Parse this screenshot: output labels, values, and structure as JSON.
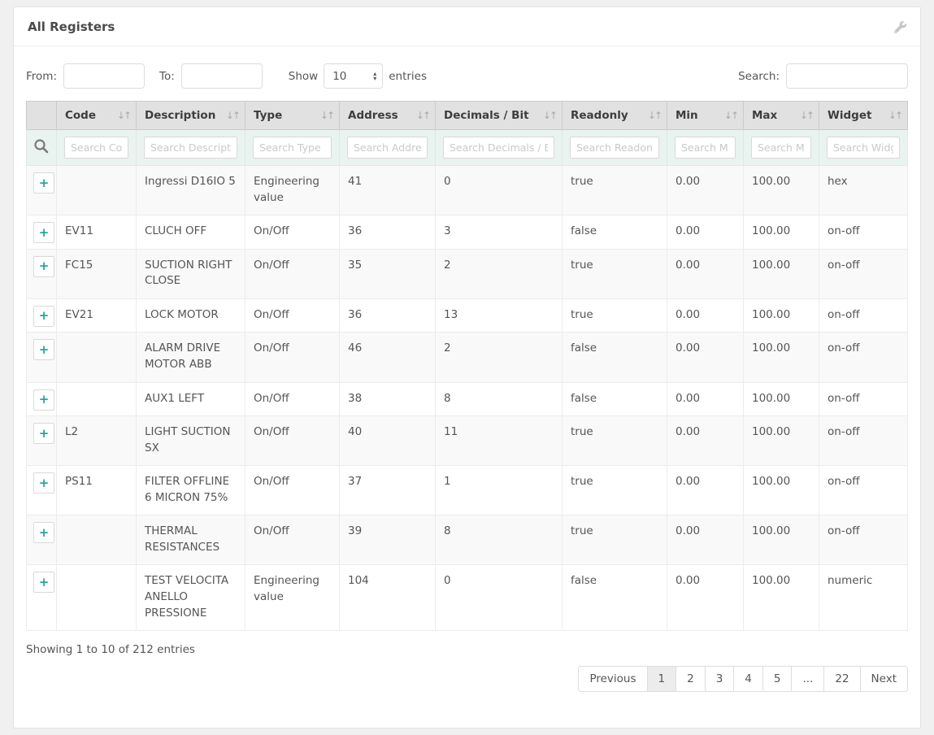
{
  "panel": {
    "title": "All Registers"
  },
  "controls": {
    "from_label": "From:",
    "to_label": "To:",
    "show_label": "Show",
    "page_length": "10",
    "entries_label": "entries",
    "search_label": "Search:"
  },
  "icons": {
    "sort_both": "↓↑",
    "stepper_up": "▴",
    "stepper_down": "▾"
  },
  "table": {
    "expand_button_label": "+",
    "columns": [
      {
        "label": "Code",
        "placeholder": "Search Code"
      },
      {
        "label": "Description",
        "placeholder": "Search Description"
      },
      {
        "label": "Type",
        "placeholder": "Search Type"
      },
      {
        "label": "Address",
        "placeholder": "Search Address"
      },
      {
        "label": "Decimals / Bit",
        "placeholder": "Search Decimals / Bit"
      },
      {
        "label": "Readonly",
        "placeholder": "Search Readonly"
      },
      {
        "label": "Min",
        "placeholder": "Search Min"
      },
      {
        "label": "Max",
        "placeholder": "Search Max"
      },
      {
        "label": "Widget",
        "placeholder": "Search Widget"
      }
    ],
    "rows": [
      {
        "code": "",
        "description": "Ingressi D16IO 5",
        "type": "Engineering value",
        "address": "41",
        "decimals": "0",
        "readonly": "true",
        "min": "0.00",
        "max": "100.00",
        "widget": "hex"
      },
      {
        "code": "EV11",
        "description": "CLUCH OFF",
        "type": "On/Off",
        "address": "36",
        "decimals": "3",
        "readonly": "false",
        "min": "0.00",
        "max": "100.00",
        "widget": "on-off"
      },
      {
        "code": "FC15",
        "description": "SUCTION RIGHT CLOSE",
        "type": "On/Off",
        "address": "35",
        "decimals": "2",
        "readonly": "true",
        "min": "0.00",
        "max": "100.00",
        "widget": "on-off"
      },
      {
        "code": "EV21",
        "description": "LOCK MOTOR",
        "type": "On/Off",
        "address": "36",
        "decimals": "13",
        "readonly": "true",
        "min": "0.00",
        "max": "100.00",
        "widget": "on-off"
      },
      {
        "code": "",
        "description": "ALARM DRIVE MOTOR ABB",
        "type": "On/Off",
        "address": "46",
        "decimals": "2",
        "readonly": "false",
        "min": "0.00",
        "max": "100.00",
        "widget": "on-off"
      },
      {
        "code": "",
        "description": "AUX1 LEFT",
        "type": "On/Off",
        "address": "38",
        "decimals": "8",
        "readonly": "false",
        "min": "0.00",
        "max": "100.00",
        "widget": "on-off"
      },
      {
        "code": "L2",
        "description": "LIGHT SUCTION SX",
        "type": "On/Off",
        "address": "40",
        "decimals": "11",
        "readonly": "true",
        "min": "0.00",
        "max": "100.00",
        "widget": "on-off"
      },
      {
        "code": "PS11",
        "description": "FILTER OFFLINE 6 MICRON 75%",
        "type": "On/Off",
        "address": "37",
        "decimals": "1",
        "readonly": "true",
        "min": "0.00",
        "max": "100.00",
        "widget": "on-off"
      },
      {
        "code": "",
        "description": "THERMAL RESISTANCES",
        "type": "On/Off",
        "address": "39",
        "decimals": "8",
        "readonly": "true",
        "min": "0.00",
        "max": "100.00",
        "widget": "on-off"
      },
      {
        "code": "",
        "description": "TEST VELOCITA ANELLO PRESSIONE",
        "type": "Engineering value",
        "address": "104",
        "decimals": "0",
        "readonly": "false",
        "min": "0.00",
        "max": "100.00",
        "widget": "numeric"
      }
    ]
  },
  "footer": {
    "info": "Showing 1 to 10 of 212 entries",
    "pagination": [
      "Previous",
      "1",
      "2",
      "3",
      "4",
      "5",
      "...",
      "22",
      "Next"
    ],
    "active_page": "1"
  },
  "colors": {
    "accent_teal": "#26a69a",
    "header_bg": "#e1e1e1",
    "search_row_bg": "#e9f3ef",
    "row_alt_bg": "#f9f9f9"
  }
}
